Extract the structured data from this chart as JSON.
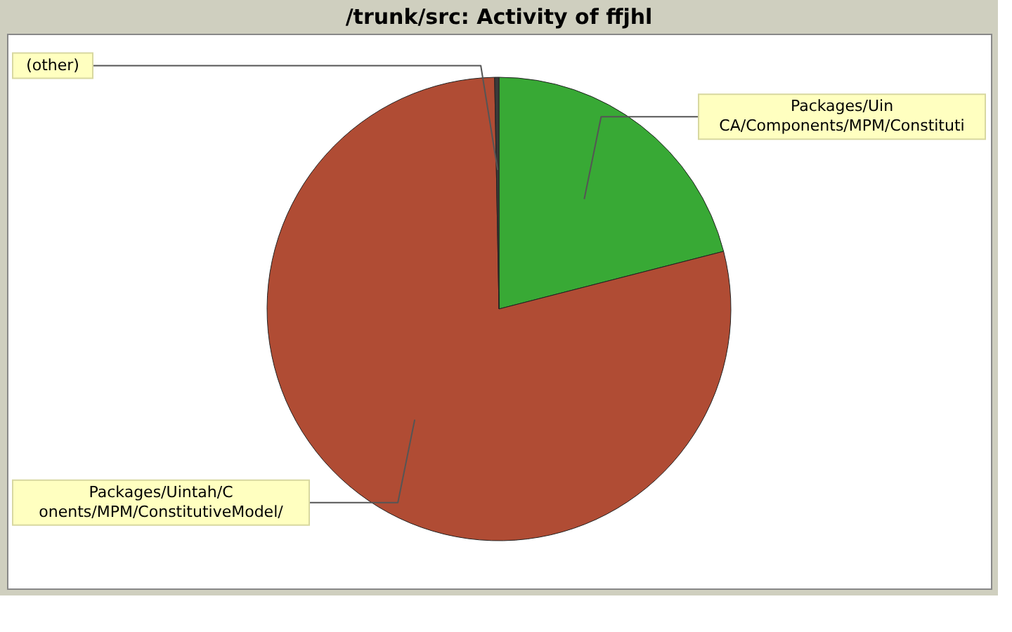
{
  "chart_data": {
    "type": "pie",
    "title": "/trunk/src: Activity of ffjhl",
    "categories": [
      "Packages/Uin\nCA/Components/MPM/Constituti",
      "Packages/Uintah/C\nonents/MPM/ConstitutiveModel/",
      "(other)"
    ],
    "values": [
      21,
      78.7,
      0.3
    ],
    "colors": [
      "#38a935",
      "#b04c34",
      "#3a3a3a"
    ]
  }
}
